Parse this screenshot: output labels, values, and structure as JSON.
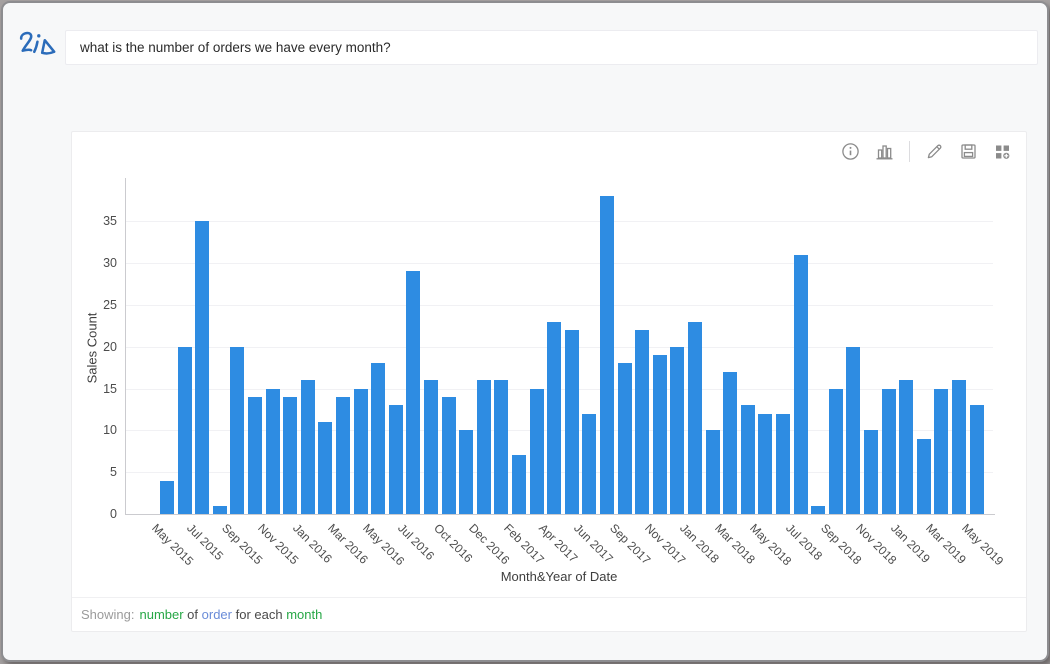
{
  "topbar": {
    "question": "what is the number of orders we have every month?"
  },
  "card": {
    "toolbar": {
      "icons": [
        "info",
        "bar-chart-type",
        "edit",
        "save",
        "add-to-dashboard"
      ]
    },
    "footer": {
      "showing_label": "Showing:",
      "segments": [
        {
          "text": "number",
          "color": "#27a746",
          "interactable": true
        },
        {
          "text": " of ",
          "color": "#4a4a4a",
          "interactable": false
        },
        {
          "text": "order",
          "color": "#6a8cd8",
          "interactable": true
        },
        {
          "text": " for each ",
          "color": "#4a4a4a",
          "interactable": false
        },
        {
          "text": "month",
          "color": "#27a746",
          "interactable": true
        }
      ]
    }
  },
  "chart_data": {
    "type": "bar",
    "title": "",
    "xlabel": "Month&Year of Date",
    "ylabel": "Sales Count",
    "bar_color": "#2e8ce2",
    "ylim": [
      0,
      39.8
    ],
    "y_ticks": [
      0,
      5,
      10,
      15,
      20,
      25,
      30,
      35
    ],
    "grid": "horizontal",
    "legend": "none",
    "values": [
      4,
      20,
      35,
      1,
      20,
      14,
      15,
      14,
      16,
      11,
      14,
      15,
      18,
      13,
      29,
      16,
      14,
      10,
      16,
      16,
      7,
      15,
      23,
      22,
      12,
      38,
      18,
      22,
      19,
      20,
      23,
      10,
      17,
      13,
      12,
      12,
      31,
      1,
      15,
      20,
      10,
      15,
      16,
      9,
      15,
      16,
      13
    ],
    "x_tick_labels": [
      "May 2015",
      "Jul 2015",
      "Sep 2015",
      "Nov 2015",
      "Jan 2016",
      "Mar 2016",
      "May 2016",
      "Jul 2016",
      "Oct 2016",
      "Dec 2016",
      "Feb 2017",
      "Apr 2017",
      "Jun 2017",
      "Sep 2017",
      "Nov 2017",
      "Jan 2018",
      "Mar 2018",
      "May 2018",
      "Jul 2018",
      "Sep 2018",
      "Nov 2018",
      "Jan 2019",
      "Mar 2019",
      "May 2019"
    ],
    "x_tick_step": 2
  }
}
